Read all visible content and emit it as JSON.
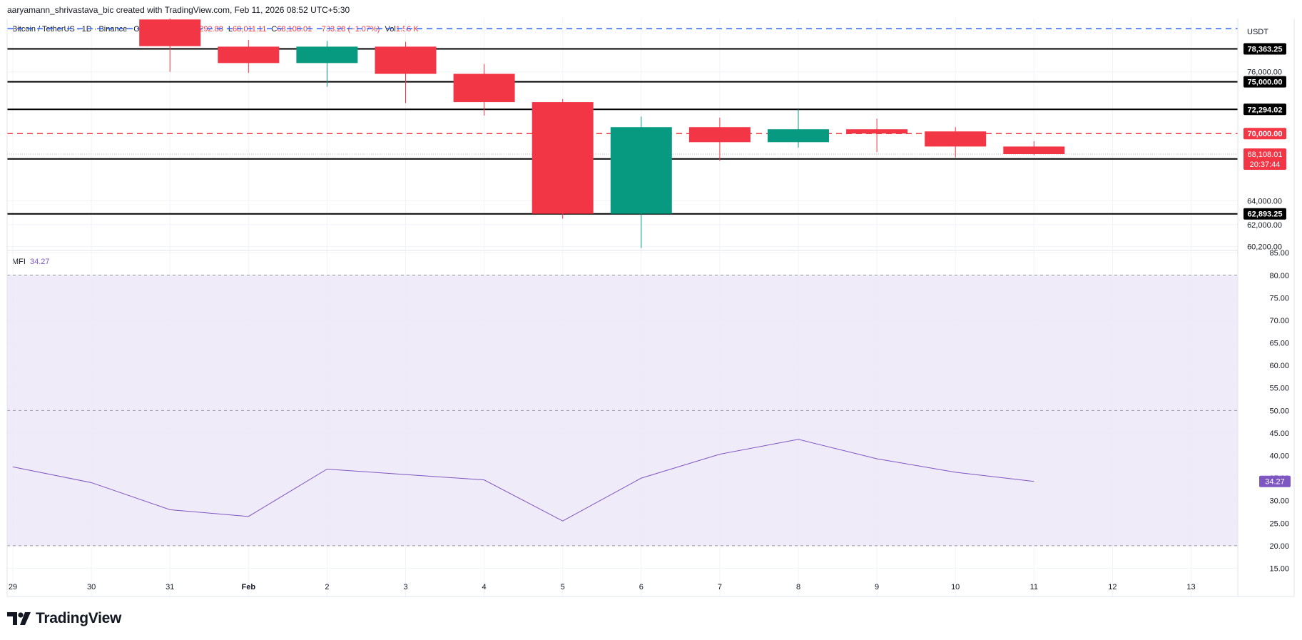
{
  "attribution": "aaryamann_shrivastava_bic created with TradingView.com, Feb 11, 2026 08:52 UTC+5:30",
  "legend": {
    "symbol": "Bitcoin / TetherUS · 1D · Binance",
    "open_label": "O",
    "high_label": "H",
    "high_value": "69,292.88",
    "low_label": "L",
    "low_value": "68,011.11",
    "close_label": "C",
    "close_value": "68,108.01",
    "change": "−733.28 (−1.07%)",
    "vol_label": "Vol",
    "vol_value": "1.56 K"
  },
  "currency_label": "USDT",
  "logo_text": "TradingView",
  "colors": {
    "up": "#089981",
    "down": "#f23645",
    "mfi_line": "#7e57c2",
    "mfi_band": "#ede8f8",
    "dashed_blue": "#2962ff"
  },
  "chart_data": [
    {
      "type": "candlestick",
      "title": "Bitcoin / TetherUS · 1D · Binance",
      "y_scale": "log",
      "ylim": [
        59900,
        81600
      ],
      "y_ticks": [
        "60,200.00",
        "62,000.00",
        "64,000.00",
        "76,000.00"
      ],
      "x_tick_labels": [
        "29",
        "30",
        "31",
        "Feb",
        "2",
        "3",
        "4",
        "5",
        "6",
        "7",
        "8",
        "9",
        "10",
        "11",
        "12",
        "13"
      ],
      "candles": [
        {
          "date": "Jan 31",
          "open": 81500,
          "high": 82100,
          "low": 76000,
          "close": 78650
        },
        {
          "date": "Feb 1",
          "open": 78600,
          "high": 79300,
          "low": 75900,
          "close": 76900
        },
        {
          "date": "Feb 2",
          "open": 76900,
          "high": 79200,
          "low": 74500,
          "close": 78600
        },
        {
          "date": "Feb 3",
          "open": 78600,
          "high": 79100,
          "low": 72900,
          "close": 75800
        },
        {
          "date": "Feb 4",
          "open": 75800,
          "high": 76800,
          "low": 71700,
          "close": 73000
        },
        {
          "date": "Feb 5",
          "open": 73000,
          "high": 73300,
          "low": 62500,
          "close": 62900
        },
        {
          "date": "Feb 6",
          "open": 62900,
          "high": 71600,
          "low": 60100,
          "close": 70600
        },
        {
          "date": "Feb 7",
          "open": 70600,
          "high": 71500,
          "low": 67500,
          "close": 69200
        },
        {
          "date": "Feb 8",
          "open": 69200,
          "high": 72300,
          "low": 68700,
          "close": 70400
        },
        {
          "date": "Feb 9",
          "open": 70400,
          "high": 71400,
          "low": 68300,
          "close": 70000
        },
        {
          "date": "Feb 10",
          "open": 70200,
          "high": 70600,
          "low": 67800,
          "close": 68800
        },
        {
          "date": "Feb 11",
          "open": 68800,
          "high": 69292.88,
          "low": 68011.11,
          "close": 68108.01
        }
      ],
      "horizontal_levels": [
        {
          "value": 78363.25,
          "label": "78,363.25",
          "style": "solid",
          "color": "#000000"
        },
        {
          "value": 75000,
          "label": "75,000.00",
          "style": "solid",
          "color": "#000000"
        },
        {
          "value": 72294.02,
          "label": "72,294.02",
          "style": "solid",
          "color": "#000000"
        },
        {
          "value": 70000,
          "label": "70,000.00",
          "style": "dashed",
          "color": "#f23645"
        },
        {
          "value": 67674.39,
          "label": "67,674.39",
          "style": "solid",
          "color": "#000000"
        },
        {
          "value": 62893.25,
          "label": "62,893.25",
          "style": "solid",
          "color": "#000000"
        },
        {
          "value": 80500,
          "label": "",
          "style": "dashed",
          "color": "#2962ff"
        }
      ],
      "last_price": {
        "value": 68108.01,
        "label": "68,108.01",
        "countdown": "20:37:44"
      }
    },
    {
      "type": "line",
      "title": "MFI",
      "series": [
        {
          "name": "MFI",
          "values": [
            37.5,
            34,
            28,
            26.5,
            37,
            35.8,
            34.6,
            25.5,
            35,
            40.3,
            43.6,
            39.3,
            36.3,
            34.27
          ]
        }
      ],
      "x": [
        "Jan 29",
        "Jan 30",
        "Jan 31",
        "Feb 1",
        "Feb 2",
        "Feb 3",
        "Feb 4",
        "Feb 5",
        "Feb 6",
        "Feb 7",
        "Feb 8",
        "Feb 9",
        "Feb 10",
        "Feb 11"
      ],
      "current_value": "34.27",
      "ylim": [
        13.5,
        85.5
      ],
      "y_ticks": [
        "15.00",
        "20.00",
        "25.00",
        "30.00",
        "35.00",
        "40.00",
        "45.00",
        "50.00",
        "55.00",
        "60.00",
        "65.00",
        "70.00",
        "75.00",
        "80.00",
        "85.00"
      ],
      "bands": {
        "upper": 80,
        "middle": 50,
        "lower": 20
      }
    }
  ]
}
